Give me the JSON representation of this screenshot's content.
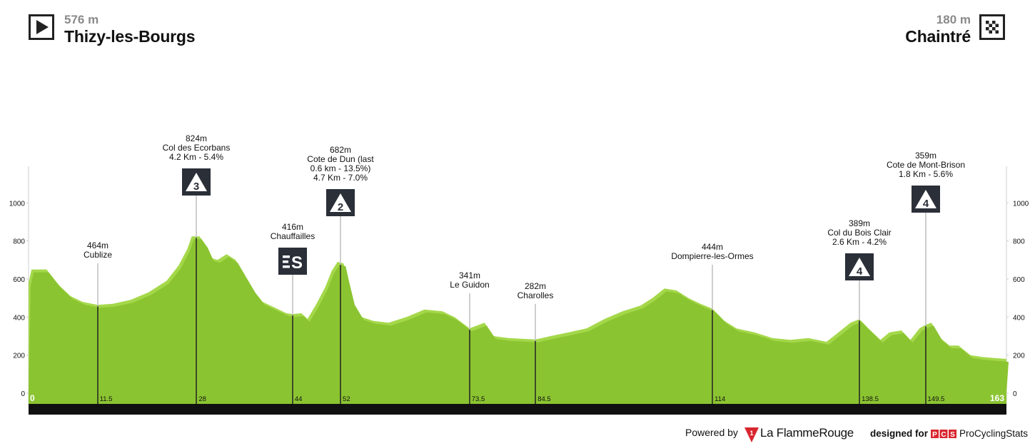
{
  "start": {
    "altitude": "576 m",
    "city": "Thizy-les-Bourgs",
    "icon": "play-icon"
  },
  "finish": {
    "altitude": "180 m",
    "city": "Chaintré",
    "icon": "checkered-flag-icon"
  },
  "footer": {
    "powered_by": "Powered by",
    "brand_la": "La Flamme",
    "brand_rouge": "Rouge",
    "designed_for": "designed for",
    "pcs_letters": [
      "P",
      "C",
      "S"
    ],
    "site": "ProCyclingStats"
  },
  "colors": {
    "profile_fill": "#8bc431",
    "climb_fill": "#a4d84a",
    "base_bar": "#111111",
    "marker_box": "#2a2f38"
  },
  "chart_data": {
    "type": "area",
    "xlim": [
      0,
      163
    ],
    "ylim": [
      0,
      1200
    ],
    "y_ticks": [
      0,
      200,
      400,
      600,
      800,
      1000
    ],
    "km_labels": [
      {
        "km": 0,
        "label": "0",
        "bold": true
      },
      {
        "km": 11.5,
        "label": "11.5"
      },
      {
        "km": 28,
        "label": "28"
      },
      {
        "km": 44,
        "label": "44"
      },
      {
        "km": 52,
        "label": "52"
      },
      {
        "km": 73.5,
        "label": "73.5"
      },
      {
        "km": 84.5,
        "label": "84.5"
      },
      {
        "km": 114,
        "label": "114"
      },
      {
        "km": 138.5,
        "label": "138.5"
      },
      {
        "km": 149.5,
        "label": "149.5"
      },
      {
        "km": 163,
        "label": "163",
        "bold": true
      }
    ],
    "profile": [
      [
        0,
        580
      ],
      [
        0.5,
        650
      ],
      [
        3,
        650
      ],
      [
        5,
        570
      ],
      [
        7,
        510
      ],
      [
        9,
        480
      ],
      [
        11.5,
        464
      ],
      [
        14,
        470
      ],
      [
        17,
        490
      ],
      [
        20,
        530
      ],
      [
        23,
        590
      ],
      [
        25,
        670
      ],
      [
        26.5,
        760
      ],
      [
        27.2,
        824
      ],
      [
        28.5,
        824
      ],
      [
        29.5,
        780
      ],
      [
        30.5,
        710
      ],
      [
        31.5,
        700
      ],
      [
        33,
        730
      ],
      [
        34.5,
        700
      ],
      [
        36,
        620
      ],
      [
        37.5,
        540
      ],
      [
        39,
        480
      ],
      [
        41,
        450
      ],
      [
        43,
        420
      ],
      [
        44,
        416
      ],
      [
        45.5,
        420
      ],
      [
        46.5,
        390
      ],
      [
        48,
        470
      ],
      [
        49.5,
        560
      ],
      [
        50.5,
        640
      ],
      [
        51.5,
        690
      ],
      [
        52.5,
        682
      ],
      [
        53,
        610
      ],
      [
        54,
        480
      ],
      [
        55.5,
        400
      ],
      [
        57.5,
        380
      ],
      [
        60,
        370
      ],
      [
        63,
        400
      ],
      [
        66,
        440
      ],
      [
        69,
        430
      ],
      [
        71,
        400
      ],
      [
        73.5,
        341
      ],
      [
        76,
        370
      ],
      [
        77.5,
        300
      ],
      [
        80,
        290
      ],
      [
        84.5,
        282
      ],
      [
        87,
        300
      ],
      [
        90,
        320
      ],
      [
        93,
        340
      ],
      [
        96,
        390
      ],
      [
        99,
        430
      ],
      [
        102,
        460
      ],
      [
        104,
        500
      ],
      [
        106,
        550
      ],
      [
        108,
        540
      ],
      [
        110,
        500
      ],
      [
        112,
        470
      ],
      [
        114,
        444
      ],
      [
        116,
        380
      ],
      [
        118,
        340
      ],
      [
        121,
        320
      ],
      [
        124,
        290
      ],
      [
        127,
        280
      ],
      [
        130,
        290
      ],
      [
        133,
        270
      ],
      [
        135,
        320
      ],
      [
        137,
        370
      ],
      [
        138.5,
        389
      ],
      [
        140,
        340
      ],
      [
        142,
        280
      ],
      [
        143.5,
        320
      ],
      [
        145.5,
        330
      ],
      [
        147,
        280
      ],
      [
        148.5,
        340
      ],
      [
        149.5,
        359
      ],
      [
        150.5,
        370
      ],
      [
        152,
        290
      ],
      [
        153.5,
        250
      ],
      [
        155,
        250
      ],
      [
        157,
        200
      ],
      [
        159,
        190
      ],
      [
        161,
        185
      ],
      [
        163,
        180
      ]
    ],
    "markers": [
      {
        "km": 11.5,
        "elev": 464,
        "lines": [
          "464m",
          "Cublize"
        ],
        "badge": null,
        "top_y": 348
      },
      {
        "km": 28,
        "elev": 824,
        "lines": [
          "824m",
          "Col des Ecorbans",
          "4.2 Km - 5.4%"
        ],
        "badge": "3",
        "badge_style": "dark",
        "top_y": 198
      },
      {
        "km": 44,
        "elev": 416,
        "lines": [
          "416m",
          "Chauffailles"
        ],
        "badge": "S",
        "badge_style": "sprint",
        "top_y": 322
      },
      {
        "km": 52,
        "elev": 682,
        "lines": [
          "682m",
          "Cote de Dun (last",
          "0.6 km - 13.5%)",
          "4.7 Km - 7.0%"
        ],
        "badge": "2",
        "badge_style": "dark",
        "top_y": 214
      },
      {
        "km": 73.5,
        "elev": 341,
        "lines": [
          "341m",
          "Le Guidon"
        ],
        "badge": null,
        "top_y": 390
      },
      {
        "km": 84.5,
        "elev": 282,
        "lines": [
          "282m",
          "Charolles"
        ],
        "badge": null,
        "top_y": 405
      },
      {
        "km": 114,
        "elev": 444,
        "lines": [
          "444m",
          "Dompierre-les-Ormes"
        ],
        "badge": null,
        "top_y": 350
      },
      {
        "km": 138.5,
        "elev": 389,
        "lines": [
          "389m",
          "Col du Bois Clair",
          "2.6 Km - 4.2%"
        ],
        "badge": "4",
        "badge_style": "dark",
        "top_y": 317
      },
      {
        "km": 149.5,
        "elev": 359,
        "lines": [
          "359m",
          "Cote de Mont-Brison",
          "1.8 Km - 5.6%"
        ],
        "badge": "4",
        "badge_style": "dark",
        "top_y": 222
      }
    ]
  }
}
